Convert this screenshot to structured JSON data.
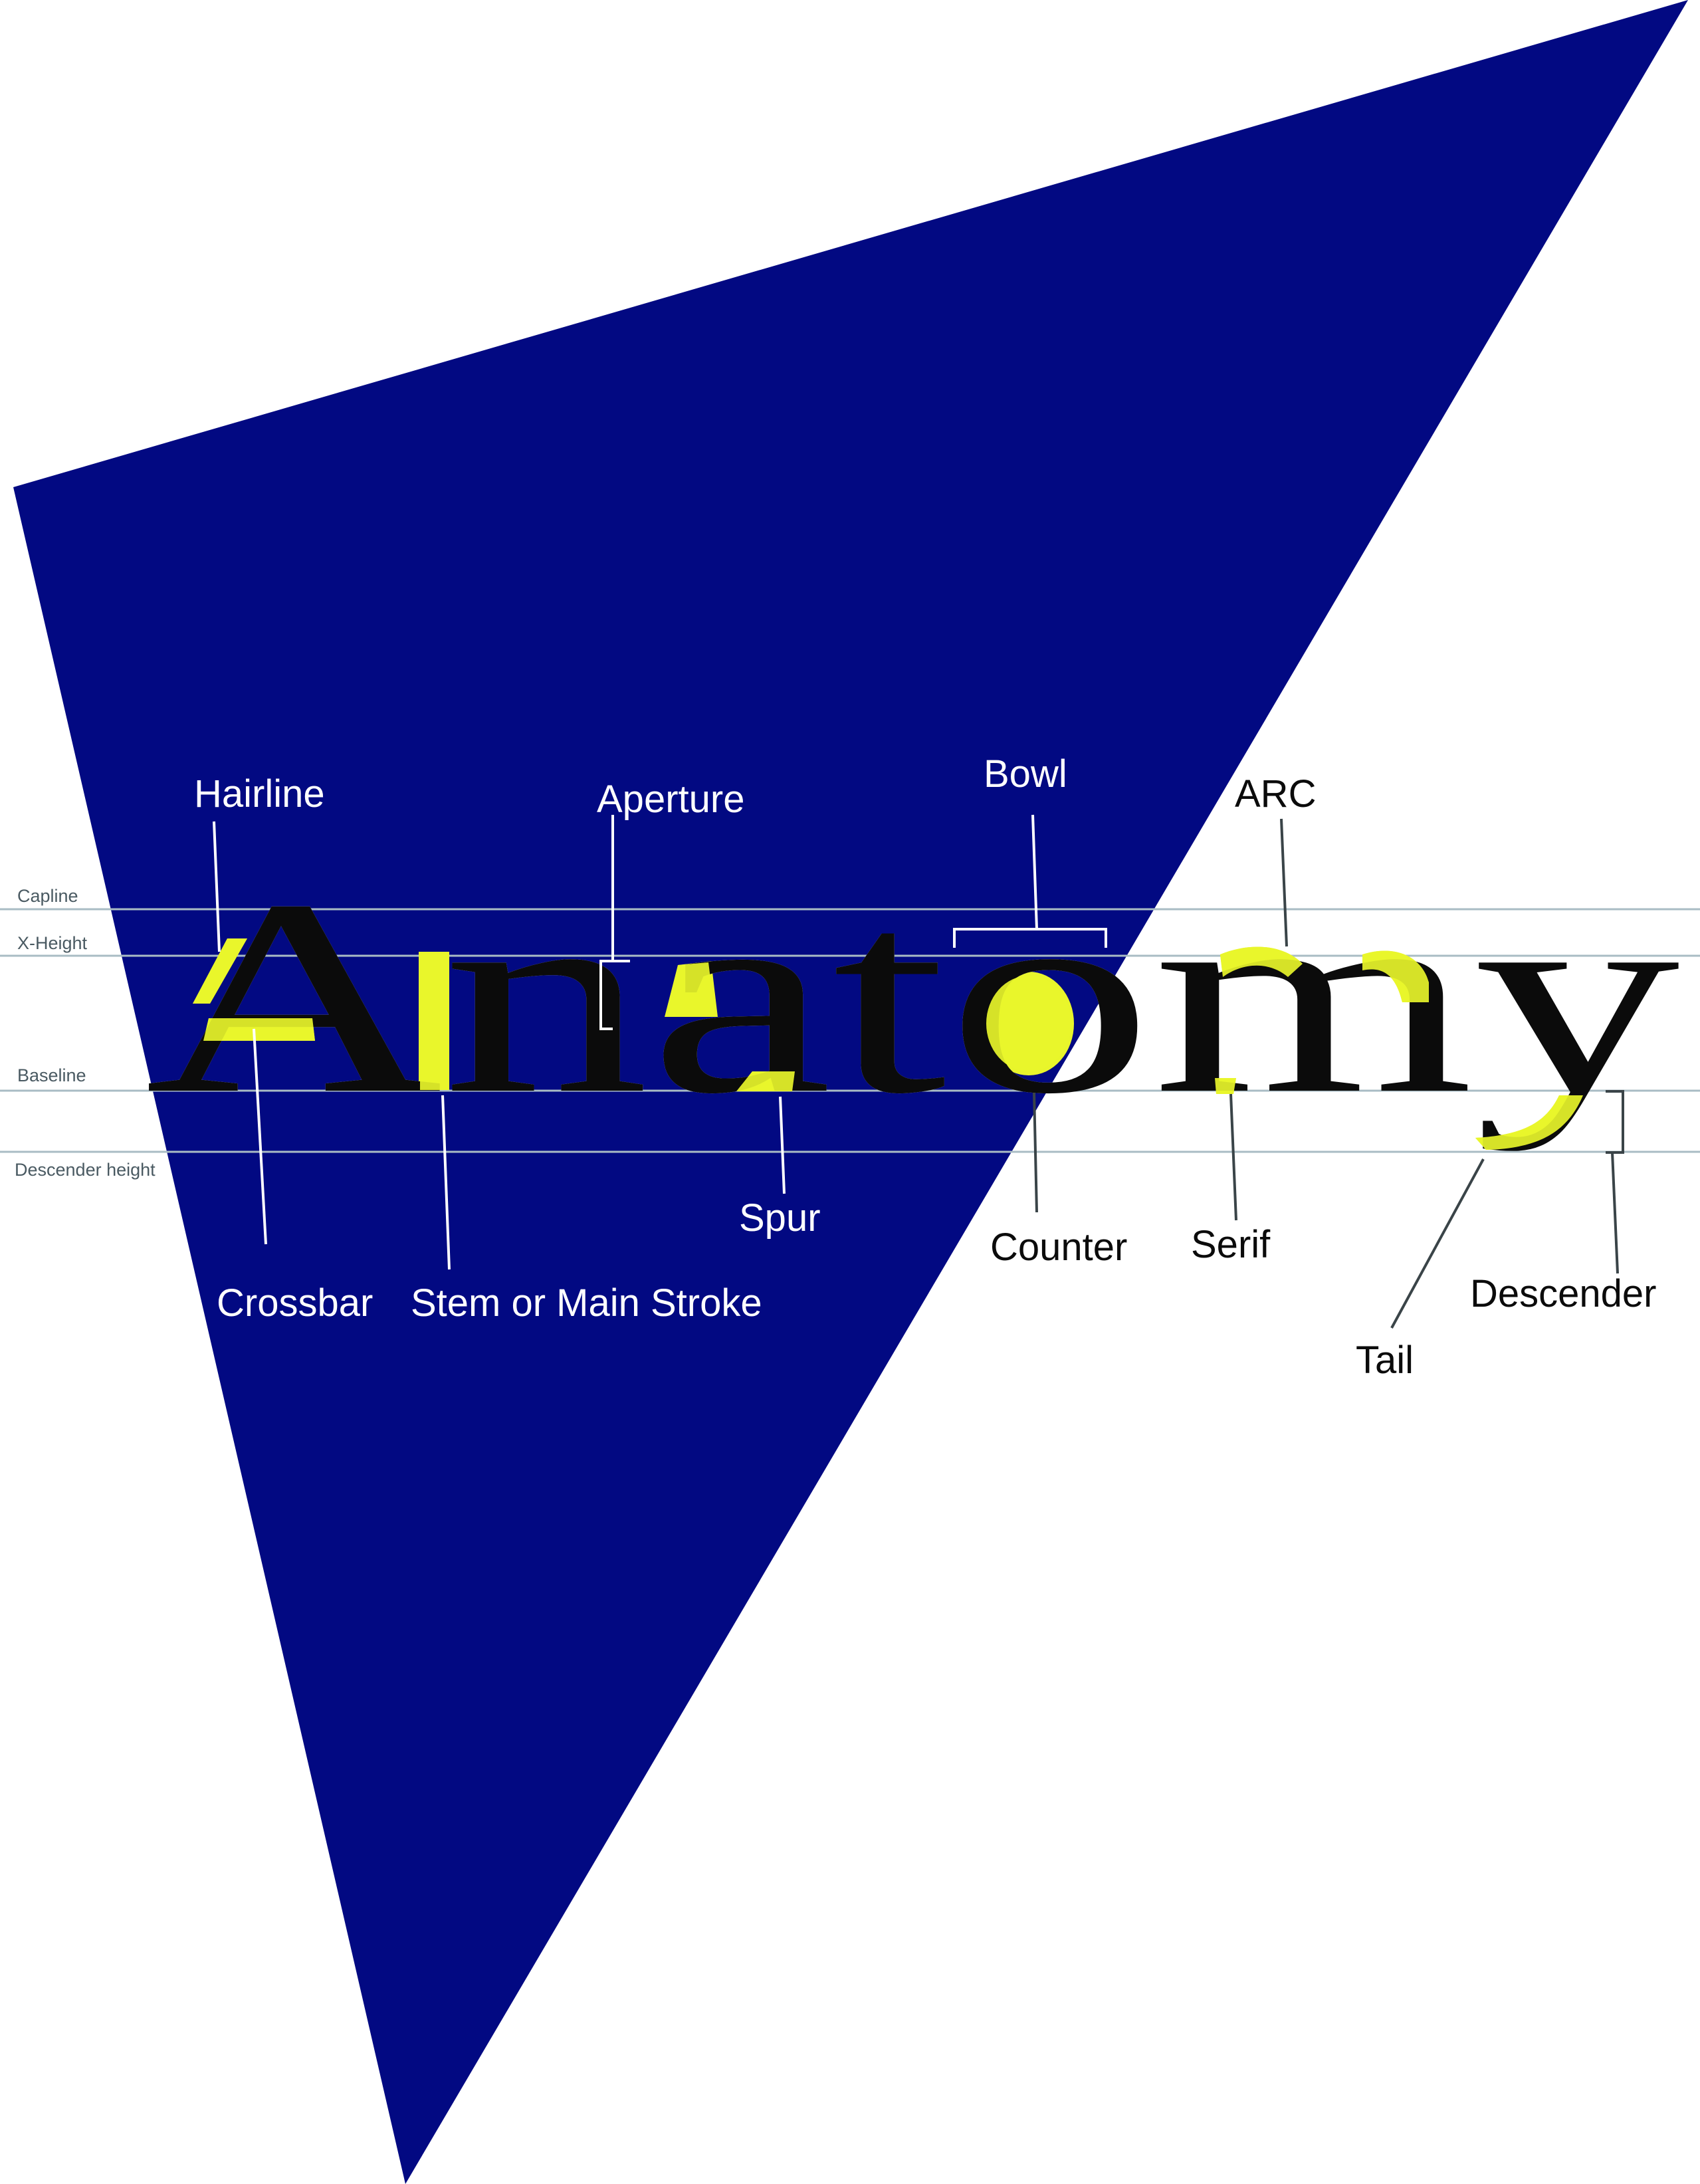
{
  "colors": {
    "background": "#ffffff",
    "triangle": "#020982",
    "highlight": "#e8f52b",
    "guide_line": "#a9bcc4",
    "guide_label": "#4a5a62",
    "leader_on_blue": "#ffffff",
    "leader_on_white": "#3a4448",
    "text_on_blue": "#ffffff",
    "text_on_white": "#0b0b0b"
  },
  "word": "Anatomy",
  "guides": {
    "capline": "Capline",
    "xheight": "X-Height",
    "baseline": "Baseline",
    "descender": "Descender height"
  },
  "terms": {
    "hairline": "Hairline",
    "aperture": "Aperture",
    "bowl": "Bowl",
    "arc": "ARC",
    "crossbar": "Crossbar",
    "stem": "Stem or Main Stroke",
    "spur": "Spur",
    "counter": "Counter",
    "serif": "Serif",
    "tail": "Tail",
    "descender": "Descender"
  }
}
